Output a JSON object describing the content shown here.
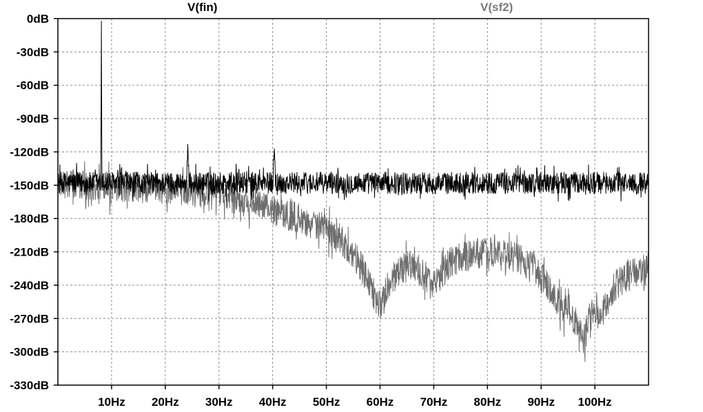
{
  "chart_data": {
    "type": "line",
    "x_axis": {
      "min": 0,
      "max": 110,
      "ticks": [
        10,
        20,
        30,
        40,
        50,
        60,
        70,
        80,
        90,
        100
      ],
      "tick_labels": [
        "10Hz",
        "20Hz",
        "30Hz",
        "40Hz",
        "50Hz",
        "60Hz",
        "70Hz",
        "80Hz",
        "90Hz",
        "100Hz"
      ]
    },
    "y_axis": {
      "min": -330,
      "max": 0,
      "ticks": [
        0,
        -30,
        -60,
        -90,
        -120,
        -150,
        -180,
        -210,
        -240,
        -270,
        -300,
        -330
      ],
      "tick_labels": [
        "0dB",
        "-30dB",
        "-60dB",
        "-90dB",
        "-120dB",
        "-150dB",
        "-180dB",
        "-210dB",
        "-240dB",
        "-270dB",
        "-300dB",
        "-330dB"
      ]
    },
    "grid": true,
    "series": [
      {
        "name": "V(fin)",
        "color": "#000000",
        "x": [
          0,
          5,
          8,
          8.1,
          8.2,
          10,
          15,
          20,
          24,
          24.2,
          24.4,
          30,
          35,
          40,
          40.3,
          40.6,
          45,
          50,
          55,
          60,
          65,
          70,
          75,
          80,
          85,
          90,
          95,
          100,
          105,
          110
        ],
        "y": [
          -148,
          -148,
          -148,
          -2,
          -148,
          -148,
          -148,
          -148,
          -148,
          -113,
          -148,
          -148,
          -148,
          -148,
          -117,
          -148,
          -148,
          -148,
          -148,
          -148,
          -148,
          -148,
          -148,
          -148,
          -148,
          -148,
          -148,
          -148,
          -148,
          -148
        ],
        "noise": 10
      },
      {
        "name": "V(sf2)",
        "color": "#6e6e6e",
        "x": [
          0,
          5,
          10,
          15,
          20,
          25,
          30,
          35,
          40,
          45,
          50,
          53,
          55,
          57,
          59,
          60,
          62,
          65,
          67,
          70,
          73,
          75,
          78,
          80,
          82,
          85,
          88,
          90,
          92,
          94,
          95,
          96,
          97,
          98,
          99,
          100,
          101,
          102,
          104,
          106,
          108,
          110
        ],
        "y": [
          -148,
          -150,
          -152,
          -153,
          -153,
          -155,
          -158,
          -165,
          -172,
          -180,
          -190,
          -200,
          -212,
          -228,
          -250,
          -258,
          -235,
          -222,
          -225,
          -240,
          -220,
          -215,
          -212,
          -210,
          -211,
          -215,
          -222,
          -232,
          -245,
          -265,
          -255,
          -270,
          -275,
          -290,
          -270,
          -260,
          -270,
          -258,
          -240,
          -232,
          -228,
          -225
        ],
        "noise": 14
      }
    ]
  }
}
